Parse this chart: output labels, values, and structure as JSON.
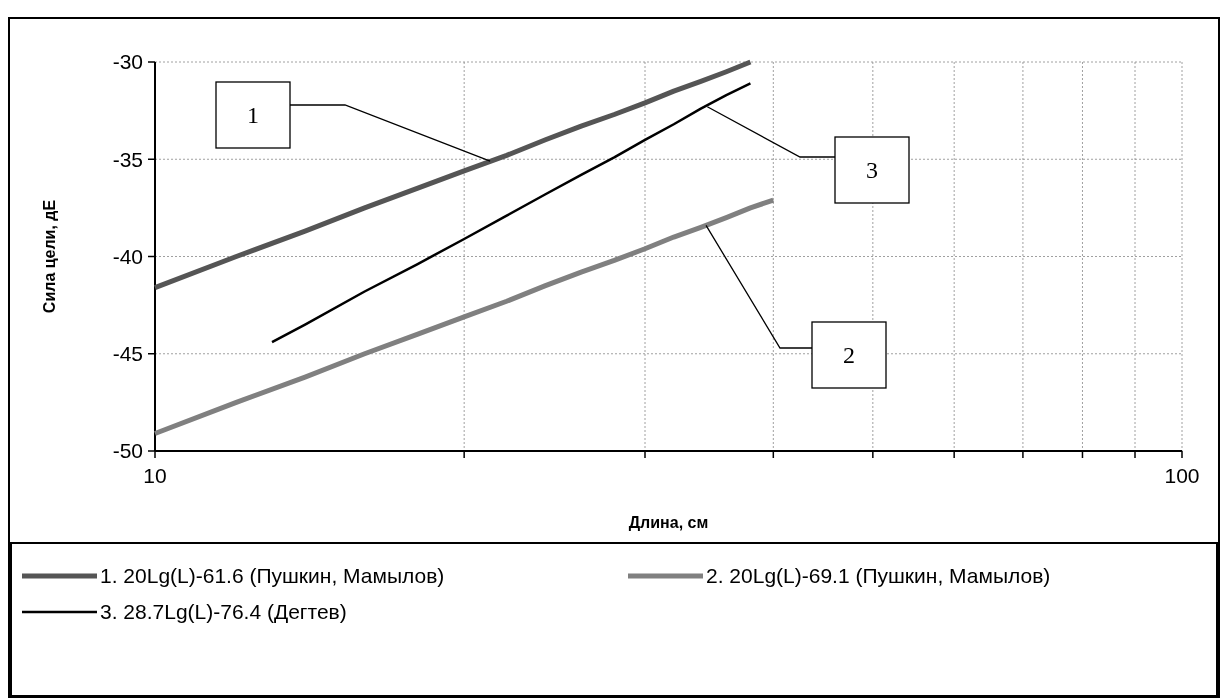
{
  "chart_data": {
    "type": "line",
    "xlabel": "Длина, см",
    "ylabel": "Сила цели, дЕ",
    "log": "x",
    "xlim": [
      10,
      100
    ],
    "ylim": [
      -50,
      -30
    ],
    "xticks": [
      10,
      {
        "value": 20,
        "label": null
      },
      {
        "value": 30,
        "label": null
      },
      {
        "value": 40,
        "label": null
      },
      {
        "value": 50,
        "label": null
      },
      {
        "value": 60,
        "label": null
      },
      {
        "value": 70,
        "label": null
      },
      {
        "value": 80,
        "label": null
      },
      {
        "value": 90,
        "label": null
      },
      100
    ],
    "yticks": [
      -50,
      -45,
      -40,
      -35,
      -30
    ],
    "grid": true,
    "legend": "bottom",
    "marker": "none",
    "line_style": "solid",
    "series": [
      {
        "name": "1. 20Lg(L)-61.6 (Пушкин, Мамылов)",
        "color": "#555555",
        "x": [
          10,
          12,
          14,
          16,
          18,
          20,
          22,
          24,
          26,
          28,
          30,
          32,
          34,
          36,
          38
        ],
        "values": [
          -41.6,
          -40.0,
          -38.7,
          -37.5,
          -36.5,
          -35.6,
          -34.8,
          -34.0,
          -33.3,
          -32.7,
          -32.1,
          -31.5,
          -31.0,
          -30.5,
          -30.0
        ]
      },
      {
        "name": "2. 20Lg(L)-69.1 (Пушкин, Мамылов)",
        "color": "#808080",
        "x": [
          10,
          12,
          14,
          16,
          18,
          20,
          22,
          24,
          26,
          28,
          30,
          32,
          34,
          36,
          38,
          40
        ],
        "values": [
          -49.1,
          -47.5,
          -46.2,
          -45.0,
          -44.0,
          -43.1,
          -42.3,
          -41.5,
          -40.8,
          -40.2,
          -39.6,
          -39.0,
          -38.5,
          -38.0,
          -37.5,
          -37.1
        ]
      },
      {
        "name": "3. 28.7Lg(L)-76.4 (Дегтев)",
        "color": "#000000",
        "x": [
          13,
          14,
          16,
          18,
          20,
          22,
          24,
          26,
          28,
          30,
          32,
          34,
          36,
          38
        ],
        "values": [
          -44.4,
          -43.5,
          -41.8,
          -40.4,
          -39.1,
          -37.9,
          -36.8,
          -35.8,
          -34.9,
          -34.0,
          -33.2,
          -32.4,
          -31.7,
          -31.1
        ]
      }
    ],
    "annotations": [
      {
        "text": "1",
        "x": 21.2,
        "y": -35.1
      },
      {
        "text": "2",
        "x": 34.4,
        "y": -38.4
      },
      {
        "text": "3",
        "x": 34.5,
        "y": -32.3
      }
    ]
  }
}
